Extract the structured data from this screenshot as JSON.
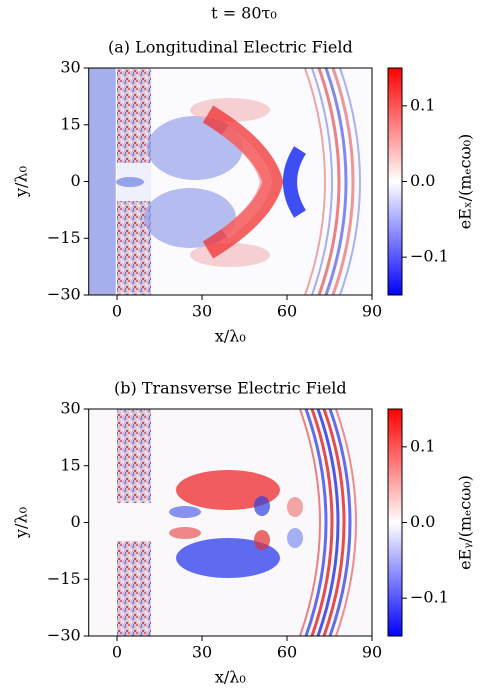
{
  "figure_title": "t = 80τ₀",
  "chart_data": [
    {
      "type": "heatmap",
      "title": "(a) Longitudinal Electric Field",
      "xlabel": "x/λ₀",
      "ylabel": "y/λ₀",
      "xlim": [
        -10,
        90
      ],
      "ylim": [
        -30,
        30
      ],
      "xticks": [
        0,
        30,
        60,
        90
      ],
      "yticks": [
        {
          "value": -30,
          "label": "−30"
        },
        {
          "value": -15,
          "label": "−15"
        },
        0,
        15,
        30
      ],
      "colorbar_label": "eEₓ/(mₑcω₀)",
      "clim": [
        -0.15,
        0.15
      ],
      "cticks": [
        {
          "value": -0.1,
          "label": "−0.1"
        },
        {
          "value": 0,
          "label": "0.0"
        },
        0.1
      ],
      "colormap": [
        "#0000ff",
        "#ffffff",
        "#ff0000"
      ]
    },
    {
      "type": "heatmap",
      "title": "(b) Transverse Electric Field",
      "xlabel": "x/λ₀",
      "ylabel": "y/λ₀",
      "xlim": [
        -10,
        90
      ],
      "ylim": [
        -30,
        30
      ],
      "xticks": [
        0,
        30,
        60,
        90
      ],
      "yticks": [
        {
          "value": -30,
          "label": "−30"
        },
        {
          "value": -15,
          "label": "−15"
        },
        0,
        15,
        30
      ],
      "colorbar_label": "eEᵧ/(mₑcω₀)",
      "clim": [
        -0.15,
        0.15
      ],
      "cticks": [
        {
          "value": -0.1,
          "label": "−0.1"
        },
        {
          "value": 0,
          "label": "0.0"
        },
        0.1
      ],
      "colormap": [
        "#0000ff",
        "#ffffff",
        "#ff0000"
      ]
    }
  ]
}
